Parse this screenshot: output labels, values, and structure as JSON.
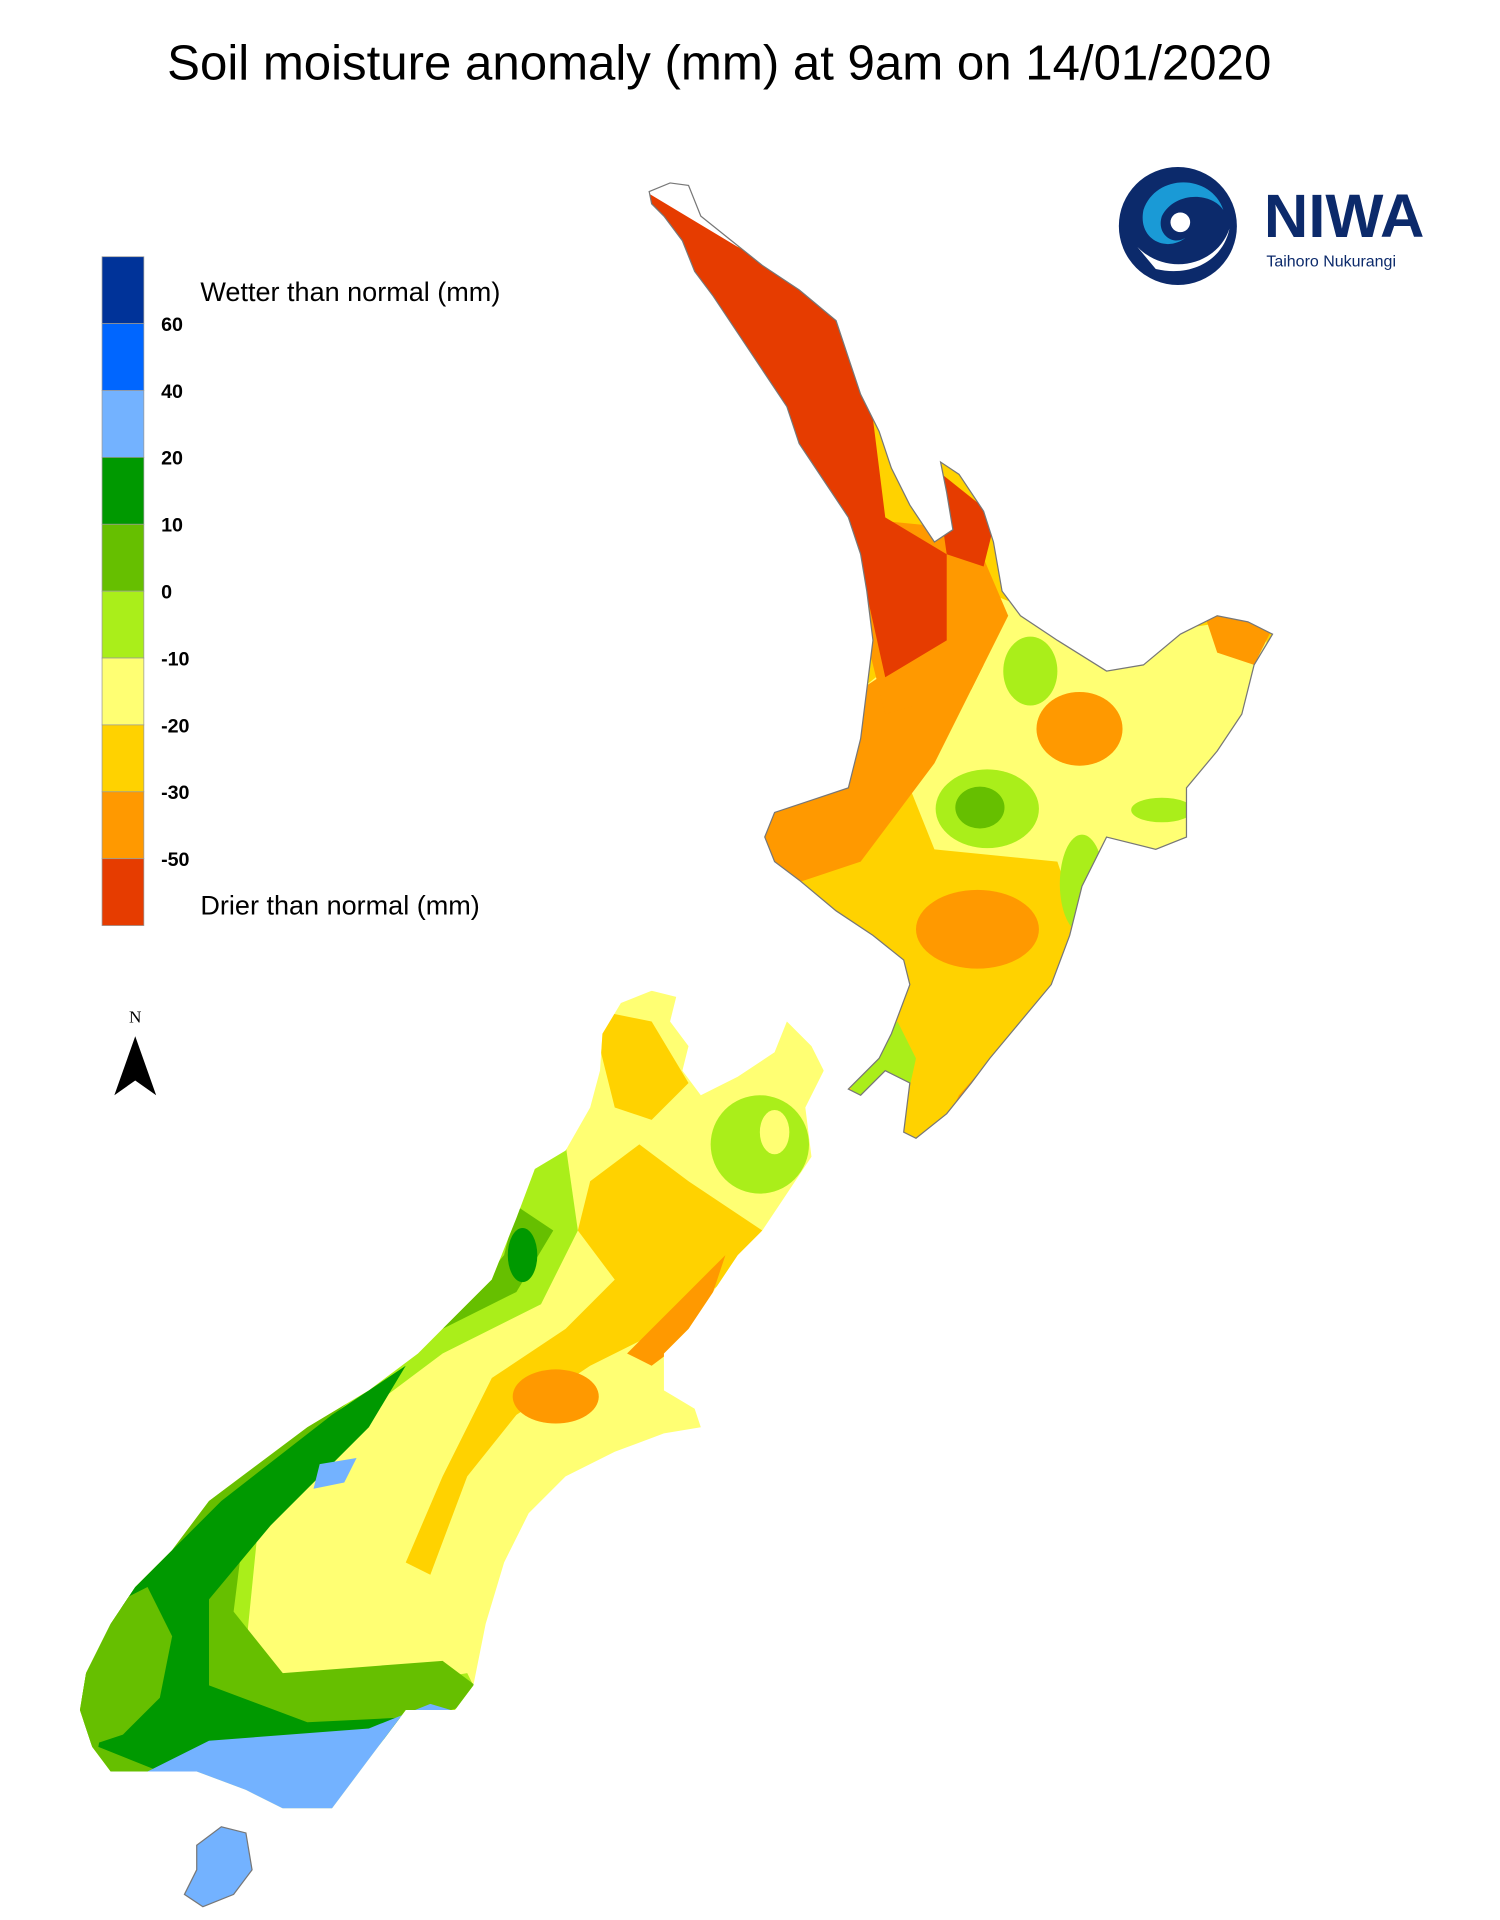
{
  "title": "Soil moisture anomaly (mm) at 9am on 14/01/2020",
  "logo": {
    "name": "NIWA",
    "subtitle": "Taihoro Nukurangi",
    "color": "#0c2a6b"
  },
  "legend": {
    "wetter_label": "Wetter than normal (mm)",
    "drier_label": "Drier than normal (mm)",
    "ticks": [
      "60",
      "40",
      "20",
      "10",
      "0",
      "-10",
      "-20",
      "-30",
      "-50"
    ],
    "colors": [
      "#003399",
      "#0066ff",
      "#73b2ff",
      "#009900",
      "#66bf00",
      "#aaee1a",
      "#ffff73",
      "#ffd200",
      "#ff9900",
      "#e63c00"
    ]
  },
  "north_arrow": {
    "label": "N"
  }
}
